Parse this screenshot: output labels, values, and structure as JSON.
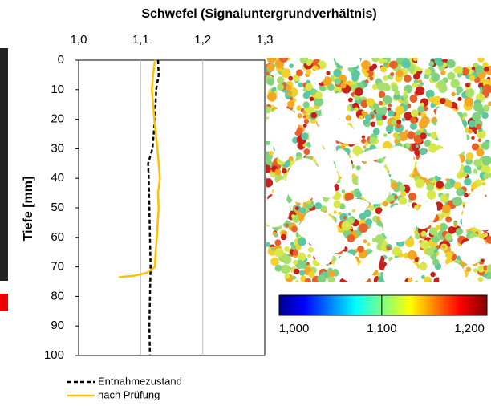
{
  "chart_data": {
    "type": "line",
    "title": "Schwefel (Signaluntergrundverhältnis)",
    "y_label": "Tiefe [mm]",
    "xlim": [
      1.0,
      1.3
    ],
    "xticks": [
      {
        "value": 1.0,
        "label": "1,0"
      },
      {
        "value": 1.1,
        "label": "1,1"
      },
      {
        "value": 1.2,
        "label": "1,2"
      },
      {
        "value": 1.3,
        "label": "1,3"
      }
    ],
    "ylim": [
      0,
      100
    ],
    "yticks": [
      0,
      10,
      20,
      30,
      40,
      50,
      60,
      70,
      80,
      90,
      100
    ],
    "y_inverted": true,
    "grid": true,
    "legend": "bottom-left",
    "series": [
      {
        "name": "Entnahmezustand",
        "color": "#000000",
        "dashed": true,
        "depth": [
          0,
          5,
          10,
          20,
          30,
          35,
          40,
          50,
          60,
          70,
          80,
          90,
          100
        ],
        "values": [
          1.128,
          1.129,
          1.125,
          1.123,
          1.119,
          1.112,
          1.113,
          1.114,
          1.115,
          1.116,
          1.115,
          1.114,
          1.115
        ]
      },
      {
        "name": "nach Prüfung",
        "color": "#ffc000",
        "dashed": false,
        "depth": [
          0,
          5,
          10,
          20,
          30,
          40,
          45,
          50,
          60,
          65,
          70,
          72,
          73,
          73.5
        ],
        "values": [
          1.123,
          1.12,
          1.118,
          1.122,
          1.127,
          1.131,
          1.128,
          1.129,
          1.126,
          1.124,
          1.123,
          1.11,
          1.09,
          1.065
        ]
      }
    ],
    "colorbar": {
      "lim": [
        0.983,
        1.22
      ],
      "ticks": [
        {
          "value": 1.0,
          "label": "1,000"
        },
        {
          "value": 1.1,
          "label": "1,100"
        },
        {
          "value": 1.2,
          "label": "1,200"
        }
      ]
    }
  }
}
